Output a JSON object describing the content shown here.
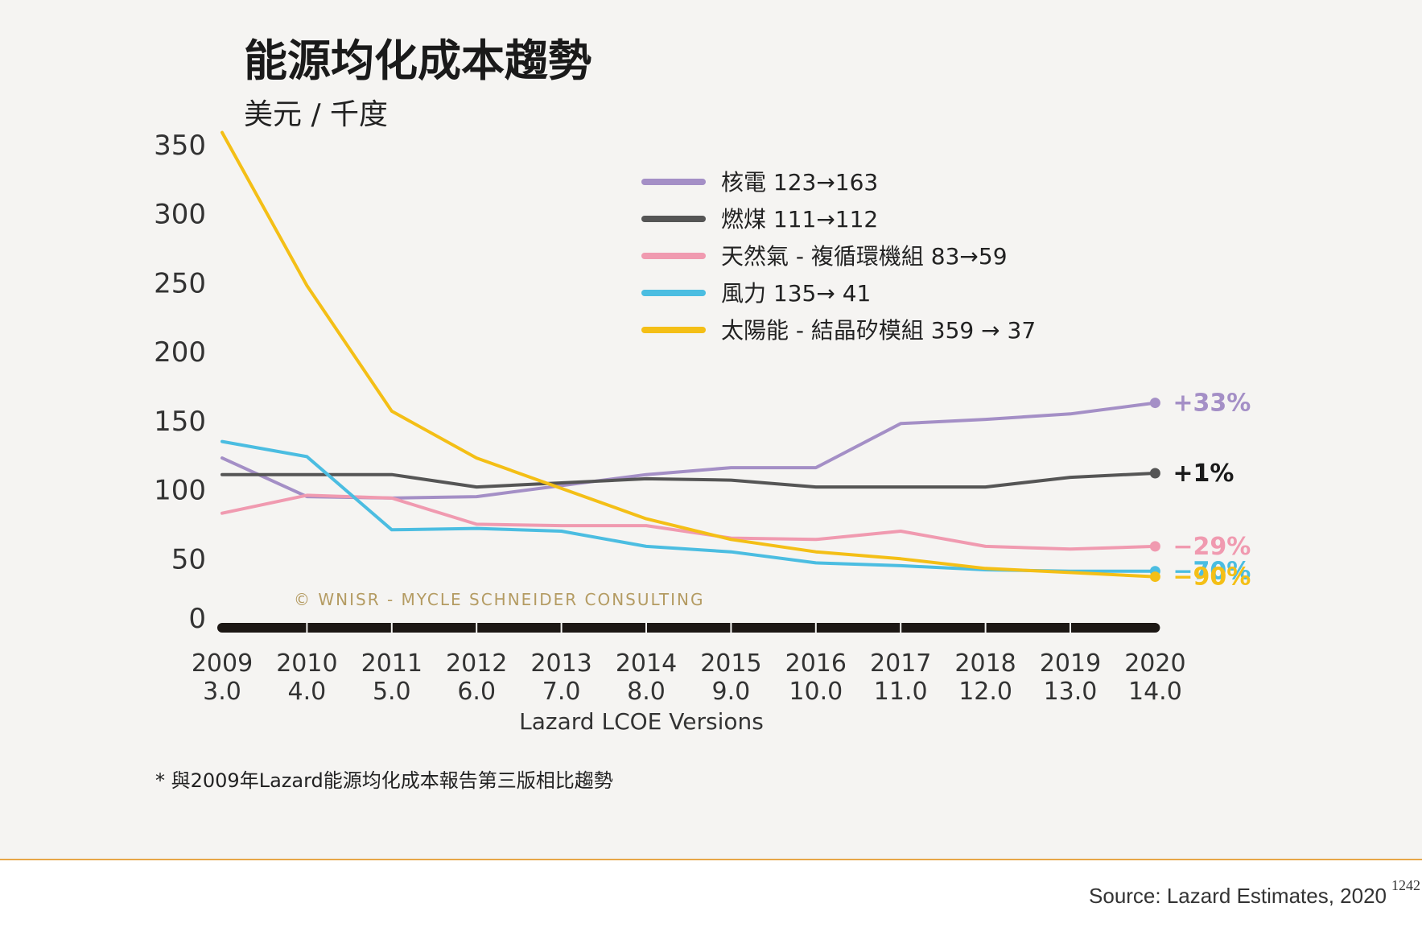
{
  "chart_data": {
    "type": "line",
    "title": "能源均化成本趨勢",
    "subtitle": "美元 / 千度",
    "xlabel": "Lazard LCOE Versions",
    "ylabel": "",
    "ylim": [
      0,
      350
    ],
    "yticks": [
      "350",
      "300",
      "250",
      "200",
      "150",
      "100",
      "50",
      "0"
    ],
    "categories": [
      "2009",
      "2010",
      "2011",
      "2012",
      "2013",
      "2014",
      "2015",
      "2016",
      "2017",
      "2018",
      "2019",
      "2020"
    ],
    "versions": [
      "3.0",
      "4.0",
      "5.0",
      "6.0",
      "7.0",
      "8.0",
      "9.0",
      "10.0",
      "11.0",
      "12.0",
      "13.0",
      "14.0"
    ],
    "grid": false,
    "legend_position": "top-center",
    "series": [
      {
        "name": "核電 123→163",
        "color": "#a48fc6",
        "end_label": "+33%",
        "values": [
          123,
          95,
          94,
          95,
          103,
          111,
          116,
          116,
          148,
          151,
          155,
          163
        ]
      },
      {
        "name": "燃煤 111→112",
        "color": "#555555",
        "end_label": "+1%",
        "values": [
          111,
          111,
          111,
          102,
          105,
          108,
          107,
          102,
          102,
          102,
          109,
          112
        ]
      },
      {
        "name": "天然氣 - 複循環機組 83→59",
        "color": "#f09ab0",
        "end_label": "−29%",
        "values": [
          83,
          96,
          94,
          75,
          74,
          74,
          65,
          64,
          70,
          59,
          57,
          59
        ]
      },
      {
        "name": "風力 135→ 41",
        "color": "#4bbde1",
        "end_label": "−70%",
        "values": [
          135,
          124,
          71,
          72,
          70,
          59,
          55,
          47,
          45,
          42,
          41,
          41
        ]
      },
      {
        "name": "太陽能 - 結晶矽模組 359 → 37",
        "color": "#f4bf16",
        "end_label": "−90%",
        "values": [
          359,
          248,
          157,
          123,
          101,
          79,
          64,
          55,
          50,
          43,
          40,
          37
        ]
      }
    ],
    "baseline_color": "#1c1714"
  },
  "watermark": "© WNISR - MYCLE SCHNEIDER CONSULTING",
  "footnote": "* 與2009年Lazard能源均化成本報告第三版相比趨勢",
  "source": "Source: Lazard Estimates, 2020",
  "page_number": "1242"
}
